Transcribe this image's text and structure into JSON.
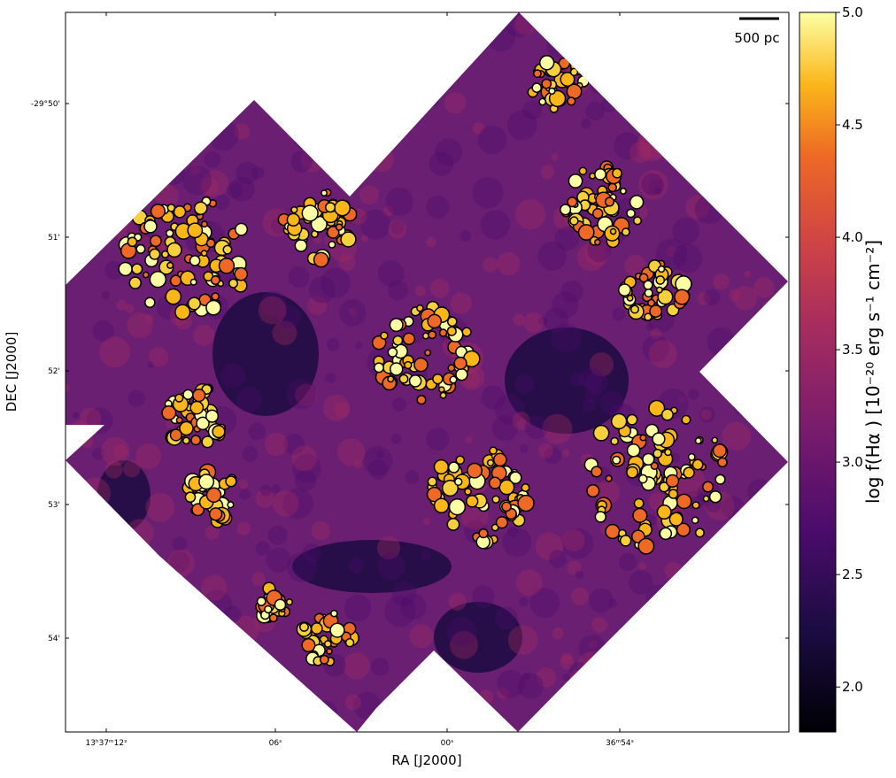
{
  "chart_data": {
    "type": "image",
    "xlabel": "RA [J2000]",
    "ylabel": "DEC [J2000]",
    "x_tick_labels": [
      "13ʰ37ᵐ12ˢ",
      "06ˢ",
      "00ˢ",
      "36ᵐ54ˢ"
    ],
    "y_tick_labels": [
      "-29°50'",
      "51'",
      "52'",
      "53'",
      "54'"
    ],
    "scale_bar_label": "500 pc",
    "colorbar": {
      "label": "log f(Hα ) [10⁻²⁰ erg s⁻¹ cm⁻²]",
      "cmap": "inferno",
      "clim": [
        1.8,
        5.0
      ],
      "ticks": [
        {
          "value": 2,
          "label": "2.0"
        },
        {
          "value": 2.5,
          "label": "2.5"
        },
        {
          "value": 3,
          "label": "3.0"
        },
        {
          "value": 3.5,
          "label": "3.5"
        },
        {
          "value": 4,
          "label": "4.0"
        },
        {
          "value": 4.5,
          "label": "4.5"
        },
        {
          "value": 5,
          "label": "5.0"
        }
      ]
    }
  }
}
